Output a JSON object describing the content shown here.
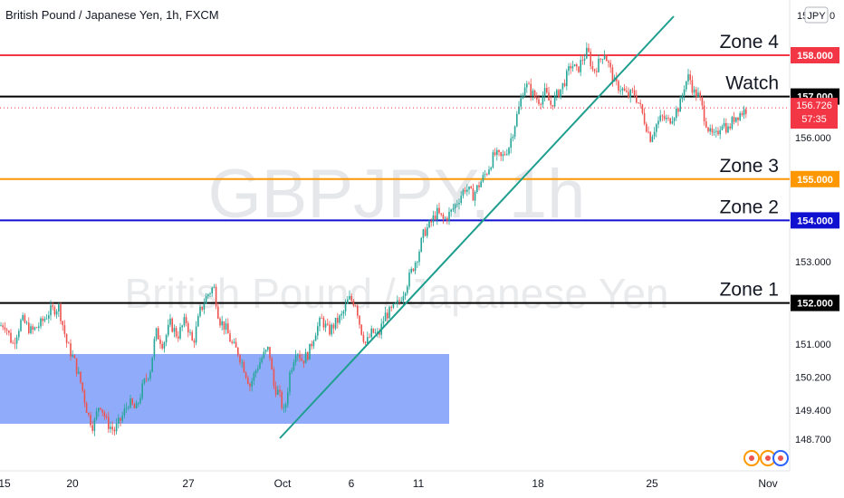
{
  "chart_title": "British Pound / Japanese Yen, 1h, FXCM",
  "watermark": {
    "symbol": "GBPJPY, 1h",
    "name": "British Pound / Japanese Yen"
  },
  "price_axis": {
    "currency_label": "JPY",
    "top_partial_label": "15",
    "top_partial_label_tail": "0",
    "last_price": "156.726",
    "countdown": "57:35"
  },
  "levels": [
    {
      "label": "Zone 4",
      "price": 158.0,
      "price_label": "158.000",
      "color": "#f23645"
    },
    {
      "label": "Watch",
      "price": 157.0,
      "price_label": "157.000",
      "color": "#000000"
    },
    {
      "label": "Zone 3",
      "price": 155.0,
      "price_label": "155.000",
      "color": "#ff9800"
    },
    {
      "label": "Zone 2",
      "price": 154.0,
      "price_label": "154.000",
      "color": "#1010d0"
    },
    {
      "label": "Zone 1",
      "price": 152.0,
      "price_label": "152.000",
      "color": "#000000"
    }
  ],
  "colors": {
    "up": "#26a69a",
    "down": "#ef5350",
    "trendline": "#1e9e8e",
    "box": "#6a8ff7",
    "last_price": "#f23645"
  },
  "chart_data": {
    "type": "candlestick",
    "title": "British Pound / Japanese Yen, 1h, FXCM",
    "timeframe": "1h",
    "y_ticks": [
      {
        "value": 156.0,
        "label": "156.000"
      },
      {
        "value": 153.0,
        "label": "153.000"
      },
      {
        "value": 151.0,
        "label": "151.000"
      },
      {
        "value": 150.2,
        "label": "150.200"
      },
      {
        "value": 149.4,
        "label": "149.400"
      },
      {
        "value": 148.7,
        "label": "148.700"
      }
    ],
    "x_ticks": [
      "15",
      "20",
      "27",
      "Oct",
      "6",
      "11",
      "18",
      "25",
      "Nov"
    ],
    "price_path": [
      [
        -5,
        151.4
      ],
      [
        5,
        151.5
      ],
      [
        14,
        151.0
      ],
      [
        24,
        151.6
      ],
      [
        35,
        151.3
      ],
      [
        45,
        151.5
      ],
      [
        55,
        151.8
      ],
      [
        65,
        151.9
      ],
      [
        74,
        151.0
      ],
      [
        82,
        150.6
      ],
      [
        90,
        150.0
      ],
      [
        97,
        149.3
      ],
      [
        103,
        149.0
      ],
      [
        110,
        149.6
      ],
      [
        118,
        149.1
      ],
      [
        126,
        148.9
      ],
      [
        134,
        149.2
      ],
      [
        142,
        149.6
      ],
      [
        150,
        149.4
      ],
      [
        158,
        150.0
      ],
      [
        166,
        150.4
      ],
      [
        172,
        151.3
      ],
      [
        180,
        151.0
      ],
      [
        188,
        151.5
      ],
      [
        196,
        151.2
      ],
      [
        205,
        151.6
      ],
      [
        213,
        151.0
      ],
      [
        221,
        151.8
      ],
      [
        229,
        152.2
      ],
      [
        236,
        152.4
      ],
      [
        242,
        151.6
      ],
      [
        249,
        151.4
      ],
      [
        256,
        151.0
      ],
      [
        263,
        150.8
      ],
      [
        270,
        150.4
      ],
      [
        276,
        150.0
      ],
      [
        283,
        150.4
      ],
      [
        290,
        150.7
      ],
      [
        297,
        150.9
      ],
      [
        302,
        150.0
      ],
      [
        308,
        149.8
      ],
      [
        314,
        149.3
      ],
      [
        320,
        150.3
      ],
      [
        327,
        150.9
      ],
      [
        334,
        150.6
      ],
      [
        341,
        150.8
      ],
      [
        348,
        151.3
      ],
      [
        355,
        151.6
      ],
      [
        363,
        151.3
      ],
      [
        370,
        151.5
      ],
      [
        378,
        151.7
      ],
      [
        385,
        152.1
      ],
      [
        393,
        152.0
      ],
      [
        398,
        151.4
      ],
      [
        404,
        151.0
      ],
      [
        411,
        151.3
      ],
      [
        418,
        151.2
      ],
      [
        425,
        151.7
      ],
      [
        432,
        151.8
      ],
      [
        440,
        152.0
      ],
      [
        448,
        152.4
      ],
      [
        455,
        152.8
      ],
      [
        462,
        153.2
      ],
      [
        468,
        153.7
      ],
      [
        475,
        153.9
      ],
      [
        482,
        154.2
      ],
      [
        490,
        154.0
      ],
      [
        498,
        154.2
      ],
      [
        506,
        154.5
      ],
      [
        514,
        154.8
      ],
      [
        522,
        154.6
      ],
      [
        530,
        154.9
      ],
      [
        538,
        155.2
      ],
      [
        546,
        155.6
      ],
      [
        554,
        155.5
      ],
      [
        562,
        155.8
      ],
      [
        568,
        156.3
      ],
      [
        574,
        156.8
      ],
      [
        579,
        157.3
      ],
      [
        584,
        157.2
      ],
      [
        590,
        157.0
      ],
      [
        596,
        156.9
      ],
      [
        602,
        157.1
      ],
      [
        608,
        156.8
      ],
      [
        614,
        157.0
      ],
      [
        620,
        157.2
      ],
      [
        626,
        157.5
      ],
      [
        631,
        157.8
      ],
      [
        637,
        157.6
      ],
      [
        643,
        157.9
      ],
      [
        649,
        158.1
      ],
      [
        655,
        157.6
      ],
      [
        661,
        157.8
      ],
      [
        667,
        158.1
      ],
      [
        673,
        157.7
      ],
      [
        679,
        157.3
      ],
      [
        686,
        157.2
      ],
      [
        693,
        157.0
      ],
      [
        700,
        157.1
      ],
      [
        706,
        156.8
      ],
      [
        712,
        156.4
      ],
      [
        718,
        156.0
      ],
      [
        724,
        156.3
      ],
      [
        731,
        156.5
      ],
      [
        738,
        156.4
      ],
      [
        745,
        156.6
      ],
      [
        751,
        156.8
      ],
      [
        756,
        157.3
      ],
      [
        761,
        157.5
      ],
      [
        766,
        157.1
      ],
      [
        772,
        157.0
      ],
      [
        778,
        156.5
      ],
      [
        784,
        156.1
      ],
      [
        790,
        156.0
      ],
      [
        797,
        156.4
      ],
      [
        804,
        156.2
      ],
      [
        811,
        156.5
      ],
      [
        818,
        156.6
      ],
      [
        826,
        156.72
      ]
    ]
  }
}
